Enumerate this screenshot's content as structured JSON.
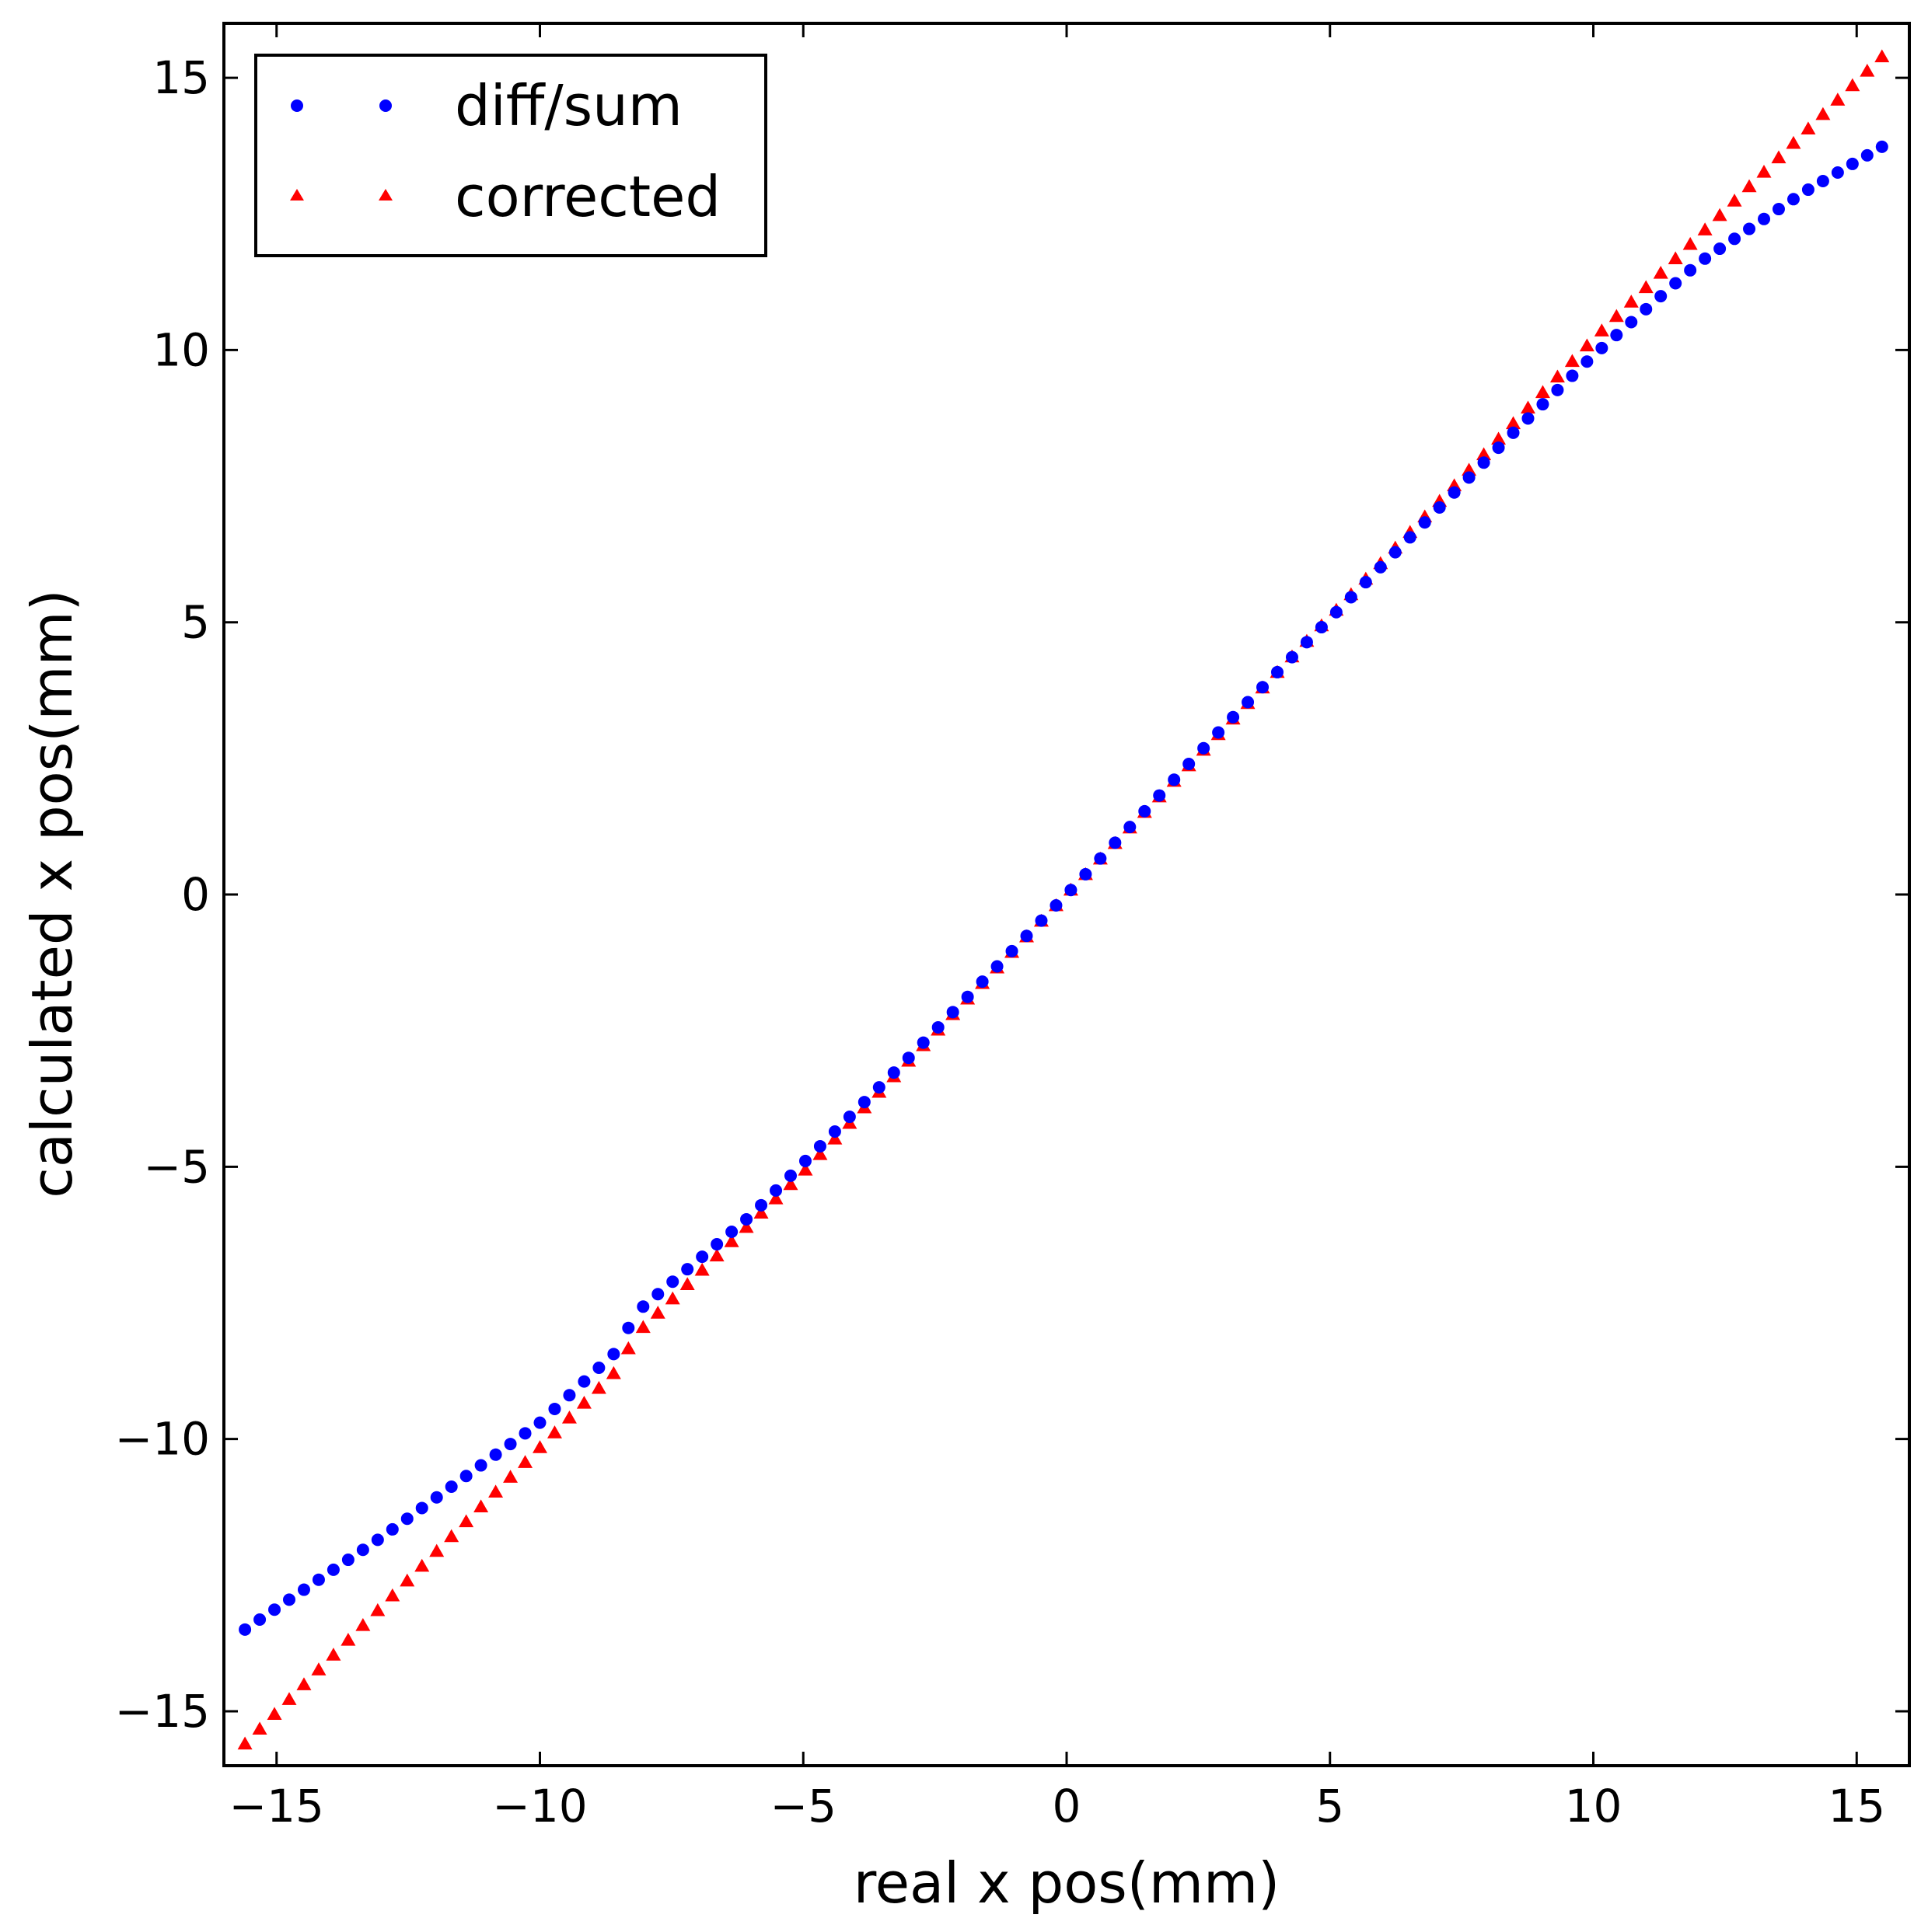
{
  "chart_data": {
    "type": "scatter",
    "title": "",
    "xlabel": "real x pos(mm)",
    "ylabel": "calculated x pos(mm)",
    "xlim": [
      -16,
      16
    ],
    "ylim": [
      -16,
      16
    ],
    "xticks": [
      -15,
      -10,
      -5,
      0,
      5,
      10,
      15
    ],
    "yticks": [
      -15,
      -10,
      -5,
      0,
      5,
      10,
      15
    ],
    "xtick_labels": [
      "−15",
      "−10",
      "−5",
      "0",
      "5",
      "10",
      "15"
    ],
    "ytick_labels": [
      "−15",
      "−10",
      "−5",
      "0",
      "5",
      "10",
      "15"
    ],
    "grid": false,
    "legend_position": "top-left",
    "x_start": -15.6,
    "x_step": 0.28,
    "x_count": 112,
    "series": [
      {
        "name": "diff/sum",
        "marker": "circle",
        "color": "#0000ff",
        "anchors": [
          [
            -15.6,
            -13.5
          ],
          [
            -13.0,
            -11.8
          ],
          [
            -10.0,
            -9.7
          ],
          [
            -8.5,
            -8.35
          ],
          [
            -8.2,
            -7.7
          ],
          [
            -6.0,
            -5.9
          ],
          [
            -3.0,
            -3.0
          ],
          [
            0.0,
            0.0
          ],
          [
            3.0,
            3.1
          ],
          [
            6.0,
            6.05
          ],
          [
            8.5,
            8.5
          ],
          [
            10.0,
            9.9
          ],
          [
            12.0,
            11.6
          ],
          [
            14.0,
            12.9
          ],
          [
            15.6,
            13.8
          ]
        ]
      },
      {
        "name": "corrected",
        "marker": "triangle",
        "color": "#ff0000",
        "anchors": [
          [
            -15.6,
            -15.6
          ],
          [
            -8.5,
            -8.7
          ],
          [
            -8.2,
            -8.1
          ],
          [
            -5.0,
            -5.1
          ],
          [
            0.0,
            0.0
          ],
          [
            5.0,
            5.1
          ],
          [
            10.0,
            10.2
          ],
          [
            15.6,
            15.5
          ]
        ]
      }
    ]
  }
}
